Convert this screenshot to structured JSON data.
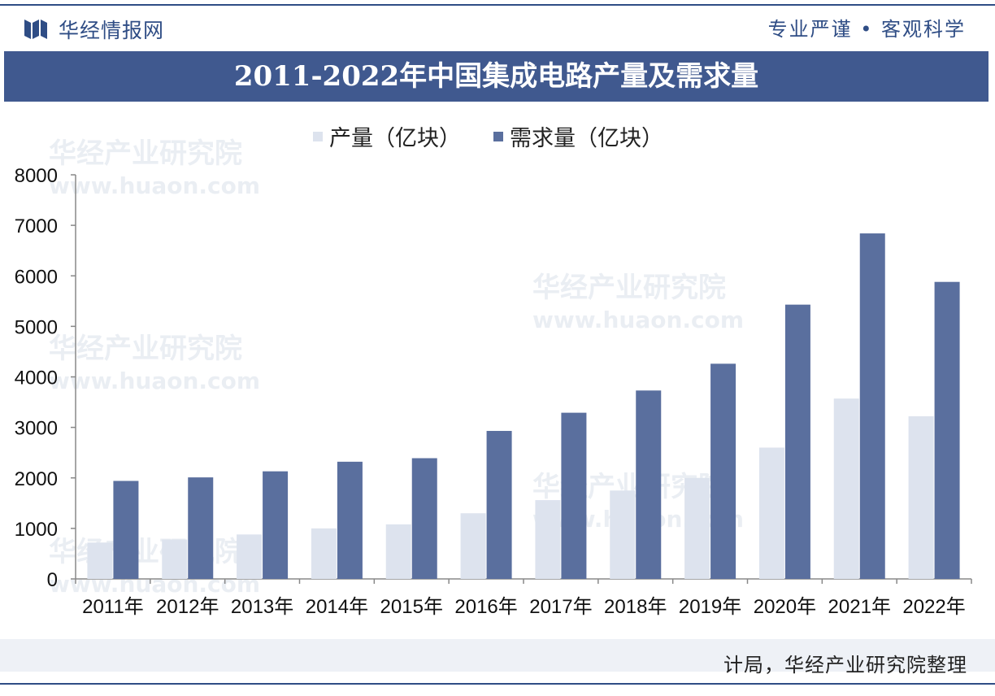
{
  "header": {
    "brand": "华经情报网",
    "slogan": "专业严谨 • 客观科学"
  },
  "title": "2011-2022年中国集成电路产量及需求量",
  "source": "计局，华经产业研究院整理",
  "watermark": {
    "text": "华经产业研究院",
    "url": "www.huaon.com"
  },
  "colors": {
    "production": "#dde3ee",
    "demand": "#5a6f9e",
    "title_bg": "#40598f"
  },
  "chart_data": {
    "type": "bar",
    "categories": [
      "2011年",
      "2012年",
      "2013年",
      "2014年",
      "2015年",
      "2016年",
      "2017年",
      "2018年",
      "2019年",
      "2020年",
      "2021年",
      "2022年"
    ],
    "series": [
      {
        "name": "产量（亿块）",
        "values": [
          720,
          780,
          880,
          1000,
          1080,
          1300,
          1560,
          1750,
          2000,
          2600,
          3570,
          3220
        ]
      },
      {
        "name": "需求量（亿块）",
        "values": [
          1940,
          2010,
          2130,
          2320,
          2390,
          2930,
          3290,
          3730,
          4260,
          5430,
          6840,
          5880
        ]
      }
    ],
    "yticks": [
      0,
      1000,
      2000,
      3000,
      4000,
      5000,
      6000,
      7000,
      8000
    ],
    "ylim": [
      0,
      8000
    ],
    "legend": "top"
  }
}
